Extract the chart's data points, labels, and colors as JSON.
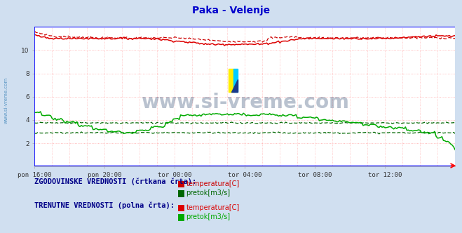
{
  "title": "Paka - Velenje",
  "title_color": "#0000cc",
  "bg_color": "#d0dff0",
  "plot_bg_color": "#ffffff",
  "grid_color": "#ffaaaa",
  "grid_minor_color": "#eeeeee",
  "xlim": [
    0,
    288
  ],
  "ylim": [
    0,
    12
  ],
  "yticks": [
    2,
    4,
    6,
    8,
    10
  ],
  "xtick_labels": [
    "pon 16:00",
    "pon 20:00",
    "tor 00:00",
    "tor 04:00",
    "tor 08:00",
    "tor 12:00"
  ],
  "xtick_positions": [
    0,
    48,
    96,
    144,
    192,
    240
  ],
  "watermark": "www.si-vreme.com",
  "watermark_color": "#1a3560",
  "watermark_alpha": 0.3,
  "sidebar_text": "www.si-vreme.com",
  "sidebar_color": "#4488bb",
  "temp_hist_color": "#cc0000",
  "temp_curr_color": "#dd0000",
  "flow_hist_color": "#006600",
  "flow_curr_color": "#00aa00",
  "blue_line_color": "#0000ff",
  "legend_text_hist": "ZGODOVINSKE VREDNOSTI (črtkana črta):",
  "legend_text_curr": "TRENUTNE VREDNOSTI (polna črta):",
  "legend_temp_label": "temperatura[C]",
  "legend_flow_label": "pretok[m3/s]",
  "n_points": 289,
  "temp_hist_mean": 11.05,
  "temp_curr_mean": 11.0,
  "flow_hist_upper": 3.75,
  "flow_hist_lower": 2.9,
  "flow_curr_start": 4.7,
  "flow_curr_mid": 4.3,
  "flow_curr_end": 1.5
}
